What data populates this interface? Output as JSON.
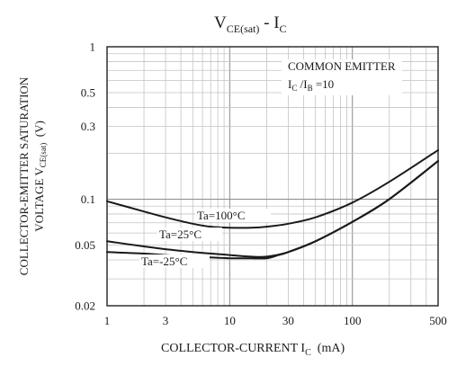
{
  "chart_data": {
    "type": "line",
    "title": {
      "main": "V",
      "main_sub": "CE(sat)",
      "sep": " - ",
      "b": "I",
      "b_sub": "C"
    },
    "annotation": {
      "line1": "COMMON EMITTER",
      "line2": {
        "a": "I",
        "a_sub": "C",
        "mid": " /I",
        "b_sub": "B",
        "tail": " =10"
      }
    },
    "xlabel": {
      "text": "COLLECTOR-CURRENT I",
      "sub": "C",
      "unit": "  (mA)"
    },
    "ylabel": {
      "line1": "COLLECTOR-EMITTER SATURATION",
      "line2_a": "VOLTAGE V",
      "line2_sub": "CE(sat)",
      "line2_b": "  (V)"
    },
    "x_scale": "log",
    "y_scale": "log",
    "xlim": [
      1,
      500
    ],
    "ylim": [
      0.02,
      1
    ],
    "x_ticks": [
      "1",
      "3",
      "10",
      "30",
      "100",
      "500"
    ],
    "y_ticks": [
      "1",
      "0.5",
      "0.3",
      "0.1",
      "0.05",
      "0.02"
    ],
    "grid": true,
    "series": [
      {
        "name": "Ta=100°C",
        "x": [
          1,
          2,
          3,
          5,
          7,
          10,
          15,
          20,
          30,
          50,
          100,
          200,
          500
        ],
        "y": [
          0.097,
          0.083,
          0.076,
          0.069,
          0.066,
          0.065,
          0.065,
          0.066,
          0.069,
          0.076,
          0.095,
          0.13,
          0.21
        ]
      },
      {
        "name": "Ta=25°C",
        "x": [
          1,
          2,
          3,
          5,
          10,
          15,
          20,
          30,
          50,
          100,
          200,
          500
        ],
        "y": [
          0.053,
          0.049,
          0.047,
          0.045,
          0.043,
          0.042,
          0.042,
          0.045,
          0.053,
          0.071,
          0.1,
          0.178
        ]
      },
      {
        "name": "Ta=-25°C",
        "x": [
          1,
          2,
          3,
          5,
          10,
          15,
          20,
          25,
          30,
          50,
          100,
          200,
          500
        ],
        "y": [
          0.045,
          0.044,
          0.043,
          0.042,
          0.041,
          0.041,
          0.041,
          0.043,
          0.045,
          0.053,
          0.071,
          0.1,
          0.178
        ]
      }
    ]
  }
}
